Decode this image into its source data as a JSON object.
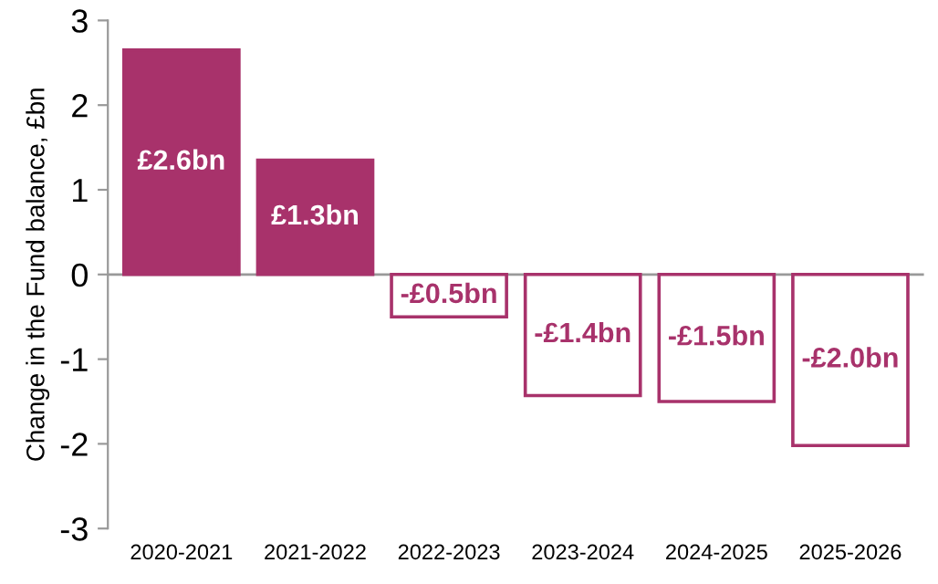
{
  "chart_data": {
    "type": "bar",
    "ylabel": "Change in the Fund balance, £bn",
    "categories": [
      "2020-2021",
      "2021-2022",
      "2022-2023",
      "2023-2024",
      "2024-2025",
      "2025-2026"
    ],
    "values": [
      2.65,
      1.35,
      -0.5,
      -1.43,
      -1.5,
      -2.02
    ],
    "value_labels": [
      "£2.6bn",
      "£1.3bn",
      "-£0.5bn",
      "-£1.4bn",
      "-£1.5bn",
      "-£2.0bn"
    ],
    "color": "#a8326b",
    "colors": [
      "#a8326b",
      "#a8326b",
      "#ffffff",
      "#ffffff",
      "#ffffff",
      "#ffffff"
    ],
    "ylim": [
      -3,
      3
    ],
    "yticks": [
      -3,
      -2,
      -1,
      0,
      1,
      2,
      3
    ],
    "ref_lines": [
      {
        "axis": "y",
        "value": 0,
        "color": "#999999"
      }
    ]
  }
}
